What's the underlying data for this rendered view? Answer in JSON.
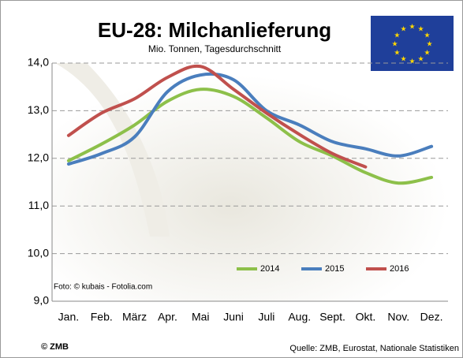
{
  "chart_data": {
    "type": "line",
    "title": "EU-28: Milchanlieferung",
    "subtitle": "Mio. Tonnen, Tagesdurchschnitt",
    "categories": [
      "Jan.",
      "Feb.",
      "März",
      "Apr.",
      "Mai",
      "Juni",
      "Juli",
      "Aug.",
      "Sept.",
      "Okt.",
      "Nov.",
      "Dez."
    ],
    "series": [
      {
        "name": "2014",
        "color": "#8dc04a",
        "values": [
          11.95,
          12.3,
          12.7,
          13.2,
          13.45,
          13.3,
          12.85,
          12.35,
          12.05,
          11.7,
          11.48,
          11.6
        ]
      },
      {
        "name": "2015",
        "color": "#4a7ebd",
        "values": [
          11.88,
          12.1,
          12.45,
          13.4,
          13.75,
          13.65,
          13.0,
          12.7,
          12.35,
          12.2,
          12.05,
          12.25
        ]
      },
      {
        "name": "2016",
        "color": "#c0504d",
        "values": [
          12.48,
          12.95,
          13.25,
          13.7,
          13.93,
          13.45,
          12.95,
          12.5,
          12.1,
          11.82,
          null,
          null
        ]
      }
    ],
    "ylim": [
      9,
      14
    ],
    "yticks": [
      {
        "value": 9,
        "label": "9,0"
      },
      {
        "value": 10,
        "label": "10,0"
      },
      {
        "value": 11,
        "label": "11,0"
      },
      {
        "value": 12,
        "label": "12,0"
      },
      {
        "value": 13,
        "label": "13,0"
      },
      {
        "value": 14,
        "label": "14,0"
      }
    ],
    "grid": true,
    "legend": "bottom-right",
    "photo_credit": "Foto: © kubais - Fotolia.com",
    "copyright": "© ZMB",
    "source": "Quelle: ZMB, Eurostat, Nationale Statistiken"
  }
}
